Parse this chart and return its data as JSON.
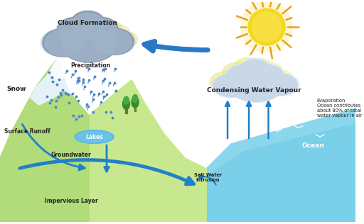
{
  "bg_color": "#ffffff",
  "labels": {
    "snow": "Snow",
    "surface_runoff": "Surface Runoff",
    "cloud_formation": "Cloud Formation",
    "precipitation": "Precipitation",
    "lakes": "Lakes",
    "groundwater": "Groundwater",
    "impervious_layer": "Impervious Layer",
    "salt_water": "Salt Water\nIntrusion",
    "ocean": "Ocean",
    "condensing": "Condensing Water Vapour",
    "evaporation": "Evaporation\nOcean contributes\nabout 80% of total\nwater vapour in air"
  },
  "mountain_color": "#a8d870",
  "mountain_color2": "#c8e890",
  "snow_color": "#d8eeff",
  "lake_color": "#5ab8e8",
  "ocean_color": "#6acce0",
  "ground_color": "#d8c890",
  "arrow_color": "#2080c8",
  "cloud_gray": "#9ab0c8",
  "cloud_light": "#b8d0e0",
  "cloud_yellow": "#e8e060",
  "sun_yellow": "#f0d820",
  "sun_ray": "#e8a820",
  "rain_color": "#5090d0",
  "text_dark": "#222222",
  "text_label": "#334455"
}
